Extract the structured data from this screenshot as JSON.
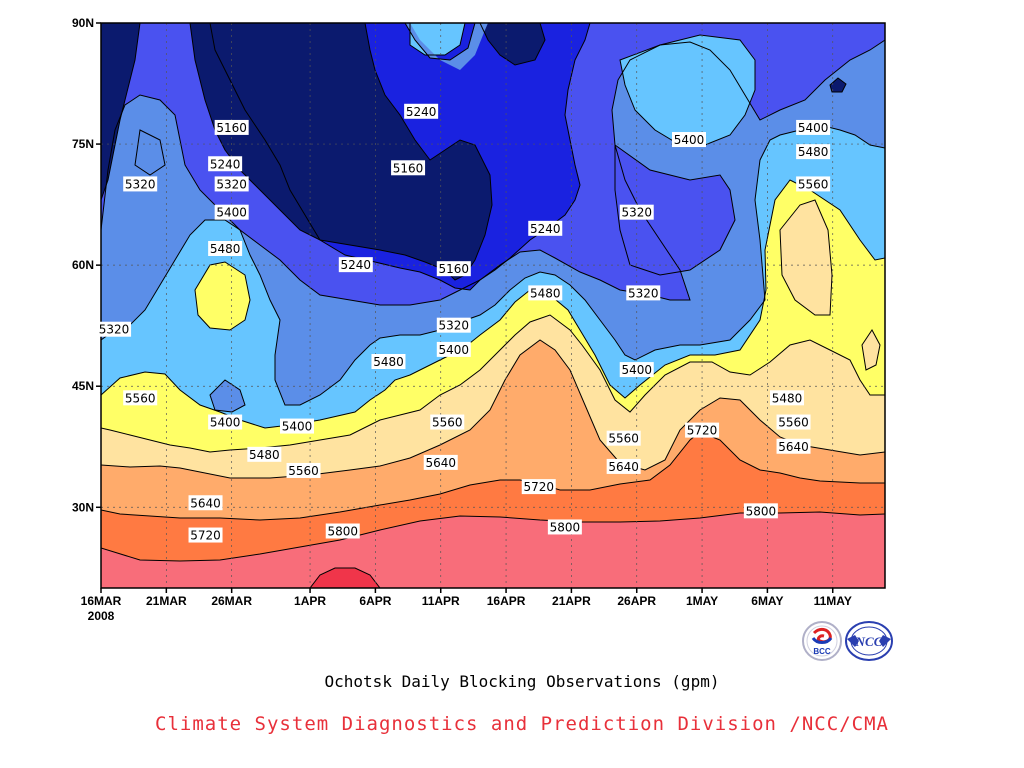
{
  "chart_data": {
    "type": "heatmap",
    "title": "Ochotsk Daily Blocking Observations (gpm)",
    "credit": "Climate System Diagnostics and Prediction Division /NCC/CMA",
    "x_tick_labels": [
      "16MAR",
      "21MAR",
      "26MAR",
      "1APR",
      "6APR",
      "11APR",
      "16APR",
      "21APR",
      "26APR",
      "1MAY",
      "6MAY",
      "11MAY"
    ],
    "x_year_label": "2008",
    "x_tick_days": [
      0,
      5,
      10,
      16,
      21,
      26,
      31,
      36,
      41,
      46,
      51,
      56
    ],
    "x_range_days": [
      0,
      60
    ],
    "y_tick_labels": [
      "90N",
      "75N",
      "60N",
      "45N",
      "30N"
    ],
    "y_tick_lats": [
      90,
      75,
      60,
      45,
      30
    ],
    "y_range_lat": [
      20,
      90
    ],
    "contour_levels": [
      5160,
      5240,
      5320,
      5400,
      5480,
      5560,
      5640,
      5720,
      5800,
      5880
    ],
    "colors": [
      "#0b1a6e",
      "#1a22e0",
      "#4a52f0",
      "#5b8ee8",
      "#66c5ff",
      "#ffff66",
      "#ffe3a0",
      "#ffab6b",
      "#ff7a42",
      "#f86d7a",
      "#f0354a"
    ],
    "contour_labels": [
      {
        "text": "5160",
        "day": 10,
        "lat": 77
      },
      {
        "text": "5240",
        "day": 24.5,
        "lat": 79
      },
      {
        "text": "5160",
        "day": 23.5,
        "lat": 72
      },
      {
        "text": "5240",
        "day": 9.5,
        "lat": 72.5
      },
      {
        "text": "5320",
        "day": 3,
        "lat": 70
      },
      {
        "text": "5320",
        "day": 10,
        "lat": 70
      },
      {
        "text": "5400",
        "day": 10,
        "lat": 66.5
      },
      {
        "text": "5400",
        "day": 45,
        "lat": 75.5
      },
      {
        "text": "5400",
        "day": 54.5,
        "lat": 77
      },
      {
        "text": "5480",
        "day": 54.5,
        "lat": 74
      },
      {
        "text": "5560",
        "day": 54.5,
        "lat": 70
      },
      {
        "text": "5320",
        "day": 41,
        "lat": 66.5
      },
      {
        "text": "5240",
        "day": 34,
        "lat": 64.5
      },
      {
        "text": "5480",
        "day": 9.5,
        "lat": 62
      },
      {
        "text": "5240",
        "day": 19.5,
        "lat": 60
      },
      {
        "text": "5160",
        "day": 27,
        "lat": 59.5
      },
      {
        "text": "5480",
        "day": 34,
        "lat": 56.5
      },
      {
        "text": "5320",
        "day": 41.5,
        "lat": 56.5
      },
      {
        "text": "5320",
        "day": 1,
        "lat": 52
      },
      {
        "text": "5320",
        "day": 27,
        "lat": 52.5
      },
      {
        "text": "5400",
        "day": 27,
        "lat": 49.5
      },
      {
        "text": "5480",
        "day": 22,
        "lat": 48
      },
      {
        "text": "5400",
        "day": 41,
        "lat": 47
      },
      {
        "text": "5560",
        "day": 3,
        "lat": 43.5
      },
      {
        "text": "5480",
        "day": 52.5,
        "lat": 43.5
      },
      {
        "text": "5400",
        "day": 9.5,
        "lat": 40.5
      },
      {
        "text": "5400",
        "day": 15,
        "lat": 40
      },
      {
        "text": "5560",
        "day": 26.5,
        "lat": 40.5
      },
      {
        "text": "5560",
        "day": 53,
        "lat": 40.5
      },
      {
        "text": "5720",
        "day": 46,
        "lat": 39.5
      },
      {
        "text": "5480",
        "day": 12.5,
        "lat": 36.5
      },
      {
        "text": "5560",
        "day": 40,
        "lat": 38.5
      },
      {
        "text": "5640",
        "day": 26,
        "lat": 35.5
      },
      {
        "text": "5640",
        "day": 53,
        "lat": 37.5
      },
      {
        "text": "5560",
        "day": 15.5,
        "lat": 34.5
      },
      {
        "text": "5640",
        "day": 40,
        "lat": 35
      },
      {
        "text": "5720",
        "day": 33.5,
        "lat": 32.5
      },
      {
        "text": "5640",
        "day": 8,
        "lat": 30.5
      },
      {
        "text": "5800",
        "day": 50.5,
        "lat": 29.5
      },
      {
        "text": "5800",
        "day": 18.5,
        "lat": 27
      },
      {
        "text": "5800",
        "day": 35.5,
        "lat": 27.5
      },
      {
        "text": "5720",
        "day": 8,
        "lat": 26.5
      }
    ]
  },
  "logos": [
    {
      "name": "bcc-logo",
      "text": "BCC"
    },
    {
      "name": "ncc-logo",
      "text": "NCC"
    }
  ]
}
